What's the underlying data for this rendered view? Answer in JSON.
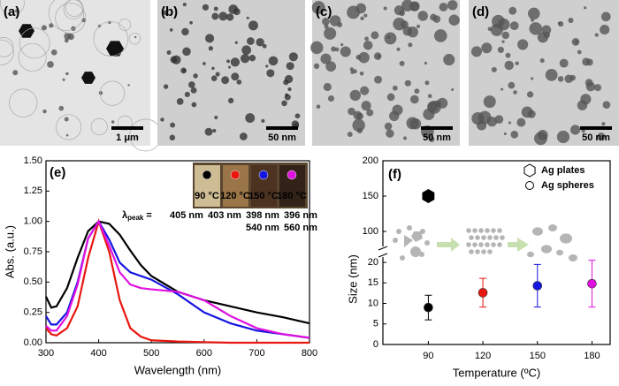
{
  "panels": [
    {
      "label": "(a)",
      "scale_bar": "1 μm"
    },
    {
      "label": "(b)",
      "scale_bar": "50 nm"
    },
    {
      "label": "(c)",
      "scale_bar": "50 nm"
    },
    {
      "label": "(d)",
      "scale_bar": "50 nm"
    }
  ],
  "chart_data": [
    {
      "type": "line",
      "label": "(e)",
      "x_label": "Wavelength (nm)",
      "y_label": "Abs. (a.u.)",
      "x": [
        300,
        310,
        320,
        340,
        360,
        380,
        400,
        420,
        440,
        460,
        480,
        500,
        550,
        600,
        650,
        700,
        750,
        800
      ],
      "series": [
        {
          "name": "90 °C",
          "color": "#000000",
          "values": [
            0.38,
            0.29,
            0.3,
            0.45,
            0.7,
            0.92,
            1.0,
            0.98,
            0.89,
            0.76,
            0.64,
            0.55,
            0.42,
            0.35,
            0.3,
            0.25,
            0.21,
            0.16
          ]
        },
        {
          "name": "120 °C",
          "color": "#e8170f",
          "values": [
            0.12,
            0.07,
            0.06,
            0.12,
            0.3,
            0.7,
            1.0,
            0.75,
            0.35,
            0.12,
            0.05,
            0.02,
            0.01,
            0.005,
            0,
            0,
            0,
            0
          ]
        },
        {
          "name": "150 °C",
          "color": "#1515e0",
          "values": [
            0.22,
            0.15,
            0.15,
            0.25,
            0.5,
            0.86,
            1.0,
            0.85,
            0.66,
            0.58,
            0.55,
            0.52,
            0.4,
            0.25,
            0.16,
            0.1,
            0.07,
            0.04
          ]
        },
        {
          "name": "180 °C",
          "color": "#e011e0",
          "values": [
            0.14,
            0.1,
            0.1,
            0.22,
            0.48,
            0.86,
            1.0,
            0.8,
            0.58,
            0.48,
            0.45,
            0.44,
            0.42,
            0.35,
            0.22,
            0.12,
            0.07,
            0.04
          ]
        }
      ],
      "xlim": [
        300,
        800
      ],
      "xticks": [
        300,
        400,
        500,
        600,
        700,
        800
      ],
      "ylim": [
        0,
        1.5
      ],
      "yticks": [
        {
          "value": 0,
          "label": "0.00"
        },
        {
          "value": 0.25,
          "label": "0.25"
        },
        {
          "value": 0.5,
          "label": "0.50"
        },
        {
          "value": 0.75,
          "label": "0.75"
        },
        {
          "value": 1,
          "label": "1.00"
        },
        {
          "value": 1.25,
          "label": "1.25"
        },
        {
          "value": 1.5,
          "label": "1.50"
        }
      ],
      "peak_symbol": "λ",
      "peak_subscript": "peak",
      "peak_equals": "=",
      "peak_labels": [
        {
          "text": "405 nm",
          "color": "#000000"
        },
        {
          "text": "403 nm",
          "color": "#e8170f"
        },
        {
          "text": "398 nm",
          "color": "#1515e0"
        },
        {
          "text": "396 nm",
          "color": "#e011e0"
        },
        {
          "text": "540 nm",
          "color": "#1515e0"
        },
        {
          "text": "560 nm",
          "color": "#e011e0"
        }
      ]
    },
    {
      "type": "scatter",
      "label": "(f)",
      "x_label": "Temperature (ºC)",
      "y_label": "Size (nm)",
      "x": [
        90,
        120,
        150,
        180
      ],
      "series": [
        {
          "name": "Ag spheres",
          "colors": [
            "#000000",
            "#e8170f",
            "#1515e0",
            "#e011e0"
          ],
          "values": [
            9,
            12.6,
            14.3,
            14.8
          ],
          "errors": [
            3,
            3.5,
            5.2,
            5.7
          ]
        },
        {
          "name": "Ag plates",
          "color": "#000000",
          "x": [
            90
          ],
          "values": [
            150
          ]
        }
      ],
      "xlim": [
        65,
        190
      ],
      "xticks": [
        90,
        120,
        150,
        180
      ],
      "y_segments": [
        {
          "ylim": [
            0,
            20
          ],
          "yticks": [
            0,
            5,
            10,
            15,
            20
          ]
        },
        {
          "ylim": [
            100,
            200
          ],
          "yticks": [
            100,
            150,
            200
          ]
        }
      ]
    }
  ]
}
